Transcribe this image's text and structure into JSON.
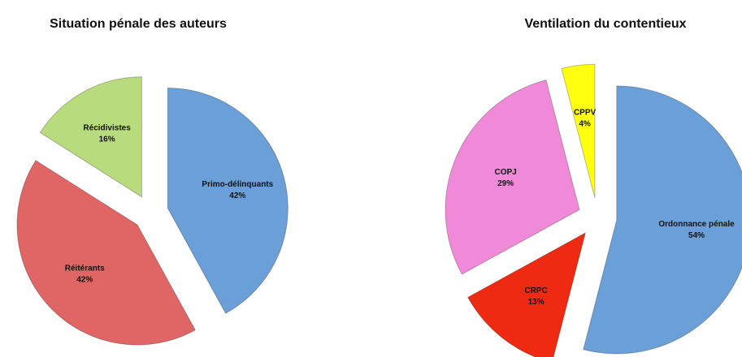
{
  "chart_data": [
    {
      "type": "pie",
      "title": "Situation pénale des auteurs",
      "categories": [
        "Primo-délinquants",
        "Réitérants",
        "Récidivistes"
      ],
      "values": [
        42,
        42,
        16
      ],
      "value_labels": [
        "42%",
        "42%",
        "16%"
      ],
      "colors": [
        "#6a9fd8",
        "#e06666",
        "#b8db7e"
      ]
    },
    {
      "type": "pie",
      "title": "Ventilation du contentieux",
      "categories": [
        "Ordonnance pénale",
        "CRPC",
        "COPJ",
        "CPPV"
      ],
      "values": [
        54,
        13,
        29,
        4
      ],
      "value_labels": [
        "54%",
        "13%",
        "29%",
        "4%"
      ],
      "colors": [
        "#6a9fd8",
        "#ee2a12",
        "#f08ad8",
        "#ffff10"
      ]
    }
  ]
}
